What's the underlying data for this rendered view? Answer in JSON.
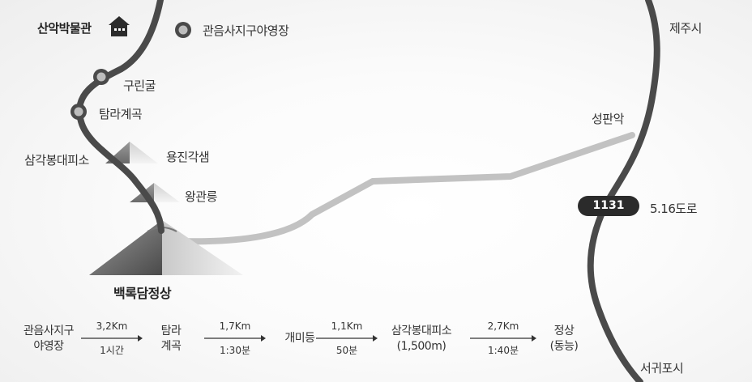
{
  "places": {
    "museum": "산악박물관",
    "campground": "관음사지구야영장",
    "gurin_cave": "구린굴",
    "tamra_valley": "탐라계곡",
    "samgak_shelter": "삼각봉대피소",
    "yongjin_gaksaem": "용진각샘",
    "wanggwan": "왕관릉",
    "summit": "백록담정상",
    "jeju_si": "제주시",
    "seongpanak": "성판악",
    "seogwipo_si": "서귀포시"
  },
  "road": {
    "number": "1131",
    "name": "5.16도로"
  },
  "course": {
    "steps": [
      {
        "line1": "관음사지구",
        "line2": "야영장"
      },
      {
        "line1": "탐라",
        "line2": "계곡"
      },
      {
        "line1": "개미등",
        "line2": ""
      },
      {
        "line1": "삼각봉대피소",
        "line2": "(1,500m)"
      },
      {
        "line1": "정상",
        "line2": "(동능)"
      }
    ],
    "legs": [
      {
        "distance": "3,2Km",
        "time": "1시간"
      },
      {
        "distance": "1,7Km",
        "time": "1:30분"
      },
      {
        "distance": "1,1Km",
        "time": "50분"
      },
      {
        "distance": "2,7Km",
        "time": "1:40분"
      }
    ]
  }
}
